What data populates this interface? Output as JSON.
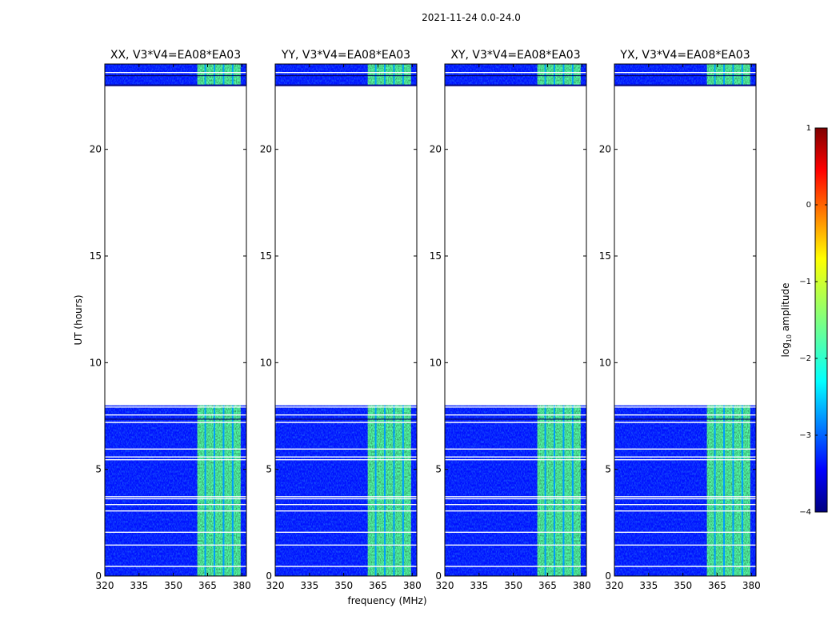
{
  "figure": {
    "suptitle": "2021-11-24 0.0-24.0"
  },
  "chart_data": {
    "type": "heatmap",
    "xlabel": "frequency (MHz)",
    "ylabel": "UT (hours)",
    "xlim": [
      320,
      382
    ],
    "ylim": [
      0,
      24
    ],
    "xticks": [
      320,
      335,
      350,
      365,
      380
    ],
    "yticks": [
      0,
      5,
      10,
      15,
      20
    ],
    "colormap": "jet",
    "colorbar": {
      "label": "log10 amplitude",
      "label_base": "log",
      "label_sub": "10",
      "label_rest": " amplitude",
      "range": [
        -4,
        1
      ],
      "ticks": [
        1,
        0,
        -1,
        -2,
        -3,
        -4
      ],
      "tick_labels": [
        "1",
        "0",
        "−1",
        "−2",
        "−3",
        "−4"
      ]
    },
    "data_coverage_hours": [
      [
        0,
        8.0
      ],
      [
        23.0,
        24.0
      ]
    ],
    "gap_lines_hours": [
      0.45,
      1.45,
      2.05,
      3.05,
      3.35,
      3.62,
      3.72,
      5.45,
      5.58,
      5.95,
      7.2,
      7.55,
      7.92,
      23.6
    ],
    "background_log10_amplitude": -3.3,
    "bright_band_MHz": [
      360.5,
      379.5
    ],
    "bright_band_log10_amplitude": -1.7,
    "subband_gaps_MHz": [
      364,
      368,
      372,
      376
    ],
    "panels": [
      {
        "title": "XX, V3*V4=EA08*EA03",
        "polarization": "XX"
      },
      {
        "title": "YY, V3*V4=EA08*EA03",
        "polarization": "YY"
      },
      {
        "title": "XY, V3*V4=EA08*EA03",
        "polarization": "XY"
      },
      {
        "title": "YX, V3*V4=EA08*EA03",
        "polarization": "YX"
      }
    ]
  }
}
